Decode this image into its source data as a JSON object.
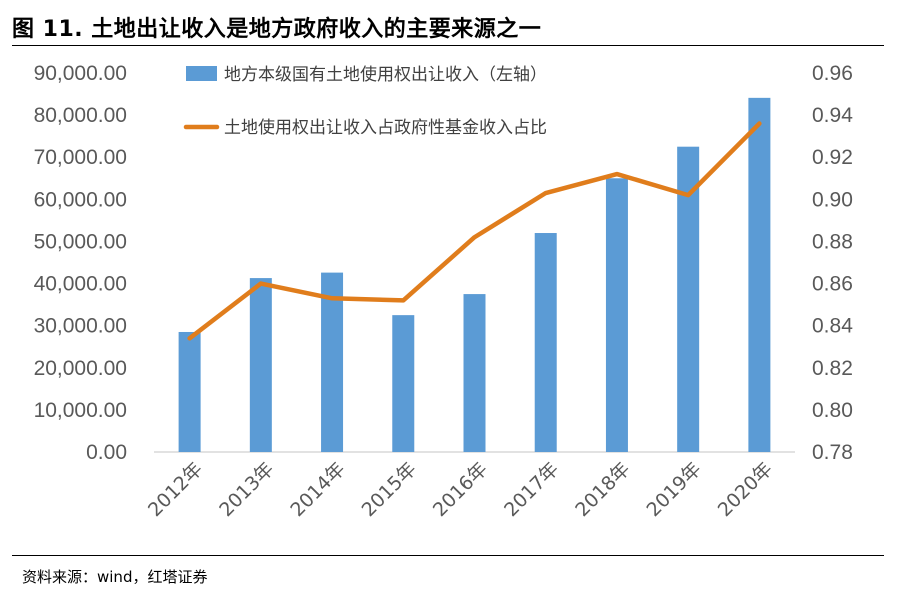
{
  "figure": {
    "title": "图 11. 土地出让收入是地方政府收入的主要来源之一",
    "source": "资料来源：wind，红塔证券"
  },
  "colors": {
    "bar": "#5b9bd5",
    "line": "#e07d1c",
    "axis": "#d9d9d9",
    "tick_text": "#595959"
  },
  "chart_data": {
    "type": "bar",
    "categories": [
      "2012年",
      "2013年",
      "2014年",
      "2015年",
      "2016年",
      "2017年",
      "2018年",
      "2019年",
      "2020年"
    ],
    "series": [
      {
        "name": "地方本级国有土地使用权出让收入（左轴）",
        "type": "bar",
        "axis": "left",
        "values": [
          28500,
          41300,
          42600,
          32500,
          37500,
          52000,
          65000,
          72500,
          84100
        ]
      },
      {
        "name": "土地使用权出让收入占政府性基金收入占比",
        "type": "line",
        "axis": "right",
        "values": [
          0.834,
          0.86,
          0.853,
          0.852,
          0.882,
          0.903,
          0.912,
          0.902,
          0.936
        ]
      }
    ],
    "y_left": {
      "lim": [
        0,
        90000
      ],
      "ticks": [
        "0.00",
        "10,000.00",
        "20,000.00",
        "30,000.00",
        "40,000.00",
        "50,000.00",
        "60,000.00",
        "70,000.00",
        "80,000.00",
        "90,000.00"
      ]
    },
    "y_right": {
      "lim": [
        0.78,
        0.96
      ],
      "ticks": [
        "0.78",
        "0.80",
        "0.82",
        "0.84",
        "0.86",
        "0.88",
        "0.90",
        "0.92",
        "0.94",
        "0.96"
      ]
    },
    "legend": "top-left, inside plot",
    "grid": false
  }
}
